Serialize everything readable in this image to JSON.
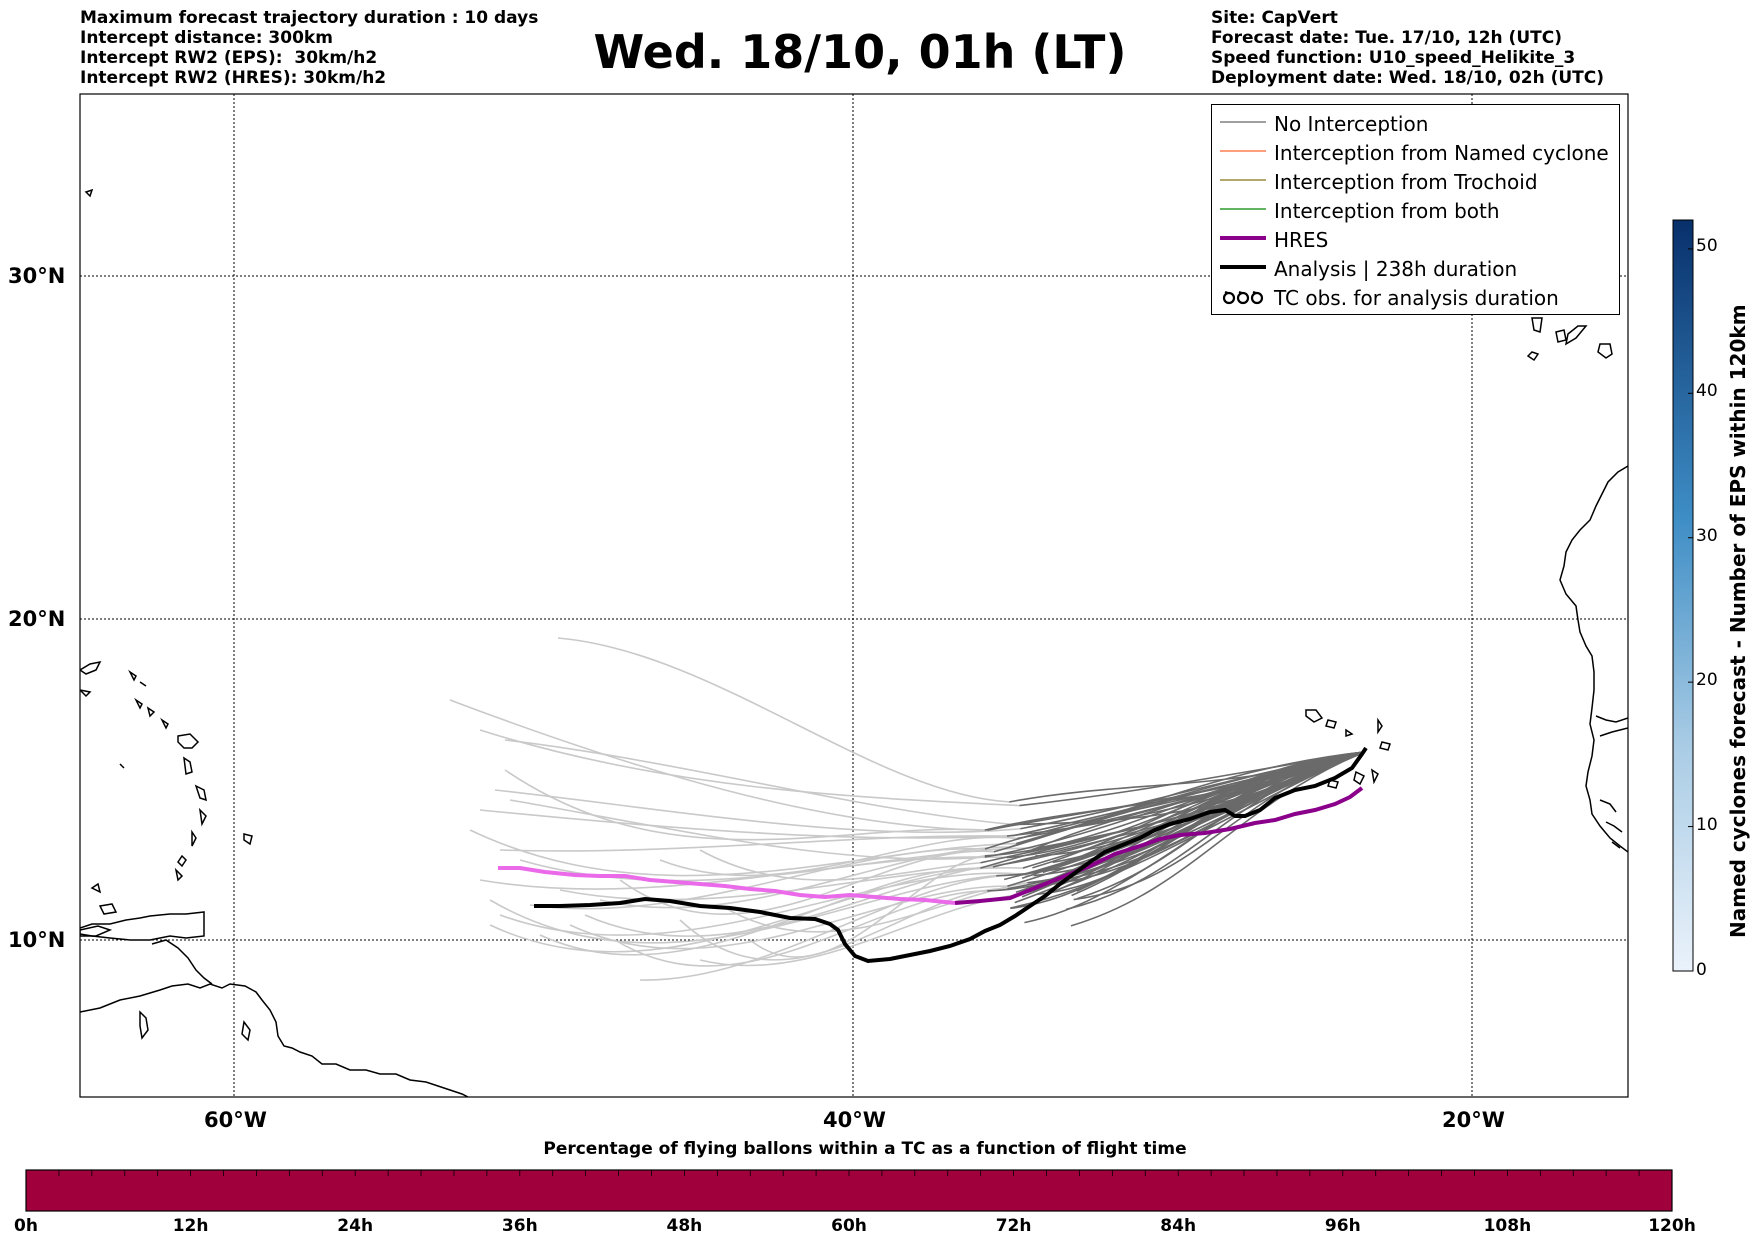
{
  "header": {
    "left_lines": [
      "Maximum forecast trajectory duration : 10 days",
      "Intercept distance: 300km",
      "Intercept RW2 (EPS):  30km/h2",
      "Intercept RW2 (HRES): 30km/h2"
    ],
    "title": "Wed. 18/10, 01h (LT)",
    "right_lines": [
      "Site: CapVert",
      "Forecast date: Tue. 17/10, 12h (UTC)",
      "Speed function: U10_speed_Helikite_3",
      "Deployment date: Wed. 18/10, 02h (UTC)"
    ]
  },
  "map": {
    "lat_labels": [
      "30°N",
      "20°N",
      "10°N"
    ],
    "lon_labels": [
      "60°W",
      "40°W",
      "20°W"
    ],
    "lat_values": [
      30,
      20,
      10
    ],
    "lon_values": [
      -60,
      -40,
      -20
    ],
    "extent": {
      "lon_min": -65,
      "lon_max": -15,
      "lat_min": 5.5,
      "lat_max": 35
    }
  },
  "legend": {
    "items": [
      {
        "label": "No Interception",
        "color": "#808080",
        "kind": "thin"
      },
      {
        "label": "Interception from Named cyclone",
        "color": "#ff7f50",
        "kind": "thin"
      },
      {
        "label": "Interception from Trochoid",
        "color": "#9a8a3a",
        "kind": "thin"
      },
      {
        "label": "Interception from both",
        "color": "#2e9a2e",
        "kind": "thin"
      },
      {
        "label": "HRES",
        "color": "#8b008b",
        "kind": "thick"
      },
      {
        "label": "Analysis | 238h duration",
        "color": "#000000",
        "kind": "thick"
      },
      {
        "label": "TC obs. for analysis duration",
        "color": "#000000",
        "kind": "tc"
      }
    ]
  },
  "colorbar": {
    "label": "Named cyclones forecast - Number of EPS within 120km",
    "ticks": [
      "50",
      "40",
      "30",
      "20",
      "10",
      "0"
    ],
    "tick_values": [
      50,
      40,
      30,
      20,
      10,
      0
    ],
    "max": 52,
    "colors": {
      "low": "#e6effa",
      "high": "#08306b"
    }
  },
  "bottom_bar": {
    "title": "Percentage of flying ballons within a TC as a function of flight time",
    "ticks": [
      "0h",
      "12h",
      "24h",
      "36h",
      "48h",
      "60h",
      "72h",
      "84h",
      "96h",
      "108h",
      "120h"
    ],
    "color": "#a0003c"
  }
}
